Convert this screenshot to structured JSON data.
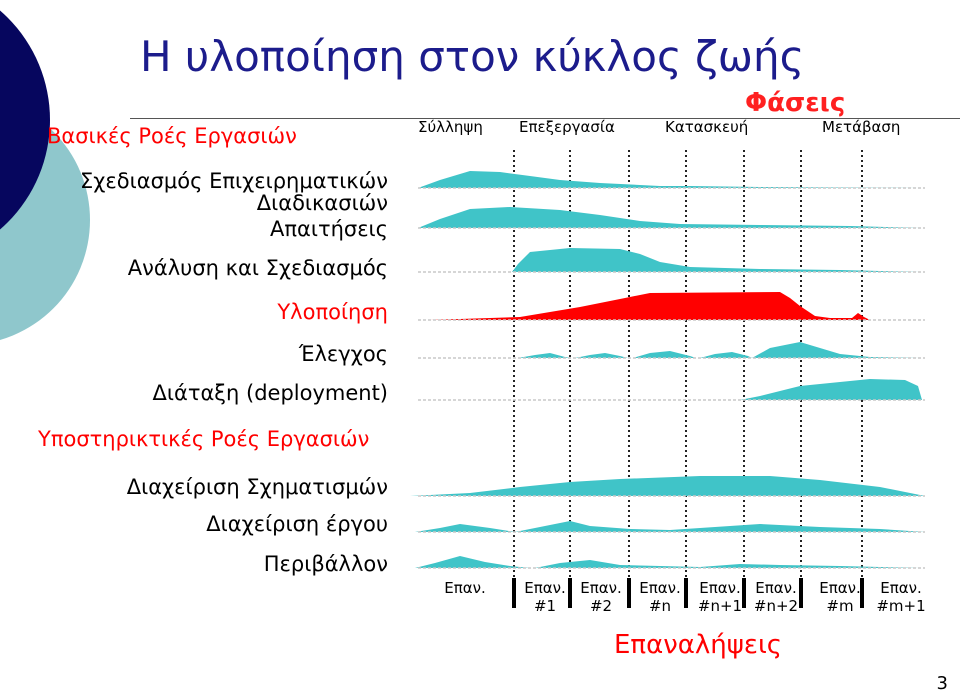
{
  "title": "Η υλοποίηση στον κύκλος ζωής",
  "phases_label": "Φάσεις",
  "phases": [
    "Σύλληψη",
    "Επεξεργασία",
    "Κατασκευή",
    "Μετάβαση"
  ],
  "core_label": "Βασικές Ροές Εργασιών",
  "support_label": "Υποστηρικτικές Ροές Εργασιών",
  "workflows": [
    {
      "line1": "Σχεδιασμός Επιχειρηματικών",
      "line2": "Διαδικασιών"
    },
    {
      "line1": "Απαιτήσεις"
    },
    {
      "line1": "Ανάλυση και Σχεδιασμός"
    },
    {
      "line1": "Υλοποίηση"
    },
    {
      "line1": "Έλεγχος"
    },
    {
      "line1": "Διάταξη (deployment)"
    }
  ],
  "support_workflows": [
    {
      "line1": "Διαχείριση Σχηματισμών"
    },
    {
      "line1": "Διαχείριση έργου"
    },
    {
      "line1": "Περιβάλλον"
    }
  ],
  "iterations": [
    {
      "line1": "Επαν.",
      "line2": ""
    },
    {
      "line1": "Επαν.",
      "line2": "#1"
    },
    {
      "line1": "Επαν.",
      "line2": "#2"
    },
    {
      "line1": "Επαν.",
      "line2": "#n"
    },
    {
      "line1": "Επαν.",
      "line2": "#n+1"
    },
    {
      "line1": "Επαν.",
      "line2": "#n+2"
    },
    {
      "line1": "Επαν.",
      "line2": "#m"
    },
    {
      "line1": "Επαν.",
      "line2": "#m+1"
    }
  ],
  "iterations_label": "Επαναλήψεις",
  "page_number": "3",
  "colors": {
    "title": "#1c1c8c",
    "accent_red": "#ff0000",
    "teal": "#40c4c8",
    "navy": "#06065e",
    "light_teal": "#8fc7cc"
  }
}
